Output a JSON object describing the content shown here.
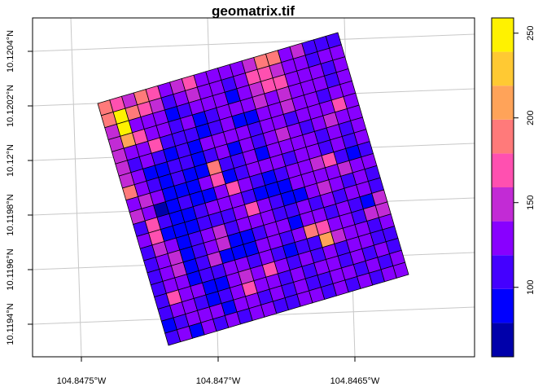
{
  "chart_data": {
    "type": "heatmap",
    "title": "geomatrix.tif",
    "xlabel": "",
    "ylabel": "",
    "x_ticks": [
      "104.8475°W",
      "104.847°W",
      "104.8465°W"
    ],
    "y_ticks": [
      "10.1204°N",
      "10.1202°N",
      "10.12°N",
      "10.1198°N",
      "10.1196°N",
      "10.1194°N"
    ],
    "grid": true,
    "legend": {
      "placement": "right",
      "breaks": [
        59,
        79,
        99,
        119,
        139,
        159,
        179,
        199,
        219,
        239,
        259
      ],
      "colors": [
        "#0000AA",
        "#0000FF",
        "#4400FF",
        "#8800FF",
        "#C22BD5",
        "#FF50B0",
        "#FF7A7A",
        "#FFA359",
        "#FFC933",
        "#FFF200"
      ],
      "tick_values": [
        100,
        150,
        200,
        250
      ],
      "tick_labels": [
        "100",
        "150",
        "200",
        "250"
      ]
    },
    "nrows": 20,
    "ncols": 20,
    "values": [
      [
        189,
        169,
        149,
        189,
        169,
        129,
        149,
        169,
        129,
        129,
        129,
        129,
        149,
        189,
        189,
        129,
        149,
        109,
        109,
        109
      ],
      [
        189,
        249,
        189,
        169,
        149,
        109,
        129,
        149,
        129,
        129,
        109,
        129,
        169,
        169,
        149,
        129,
        129,
        109,
        129,
        129
      ],
      [
        149,
        249,
        129,
        129,
        129,
        89,
        109,
        129,
        129,
        129,
        89,
        129,
        149,
        169,
        169,
        129,
        129,
        129,
        109,
        129
      ],
      [
        149,
        209,
        169,
        129,
        129,
        109,
        129,
        89,
        109,
        129,
        129,
        129,
        149,
        129,
        149,
        129,
        129,
        129,
        109,
        129
      ],
      [
        149,
        129,
        129,
        169,
        109,
        109,
        109,
        89,
        109,
        129,
        89,
        89,
        129,
        129,
        149,
        129,
        129,
        109,
        129,
        129
      ],
      [
        149,
        109,
        129,
        109,
        89,
        109,
        89,
        129,
        129,
        129,
        129,
        109,
        129,
        129,
        109,
        129,
        129,
        129,
        169,
        129
      ],
      [
        149,
        129,
        89,
        89,
        109,
        109,
        89,
        109,
        129,
        89,
        129,
        109,
        129,
        149,
        129,
        109,
        129,
        149,
        129,
        129
      ],
      [
        189,
        129,
        109,
        89,
        109,
        89,
        89,
        189,
        109,
        109,
        129,
        89,
        129,
        129,
        129,
        129,
        109,
        129,
        109,
        129
      ],
      [
        129,
        149,
        129,
        89,
        89,
        89,
        129,
        169,
        89,
        109,
        129,
        129,
        129,
        109,
        129,
        129,
        109,
        129,
        109,
        129
      ],
      [
        149,
        129,
        69,
        89,
        109,
        89,
        89,
        129,
        169,
        129,
        109,
        89,
        109,
        129,
        129,
        149,
        169,
        109,
        89,
        109
      ],
      [
        109,
        169,
        109,
        89,
        89,
        109,
        129,
        129,
        129,
        109,
        89,
        89,
        89,
        129,
        129,
        129,
        129,
        149,
        129,
        129
      ],
      [
        129,
        169,
        89,
        89,
        89,
        109,
        109,
        109,
        129,
        169,
        129,
        109,
        89,
        89,
        129,
        149,
        129,
        109,
        129,
        109
      ],
      [
        109,
        149,
        129,
        89,
        109,
        129,
        149,
        109,
        129,
        129,
        129,
        109,
        109,
        129,
        109,
        129,
        109,
        129,
        129,
        109
      ],
      [
        109,
        129,
        149,
        89,
        109,
        129,
        149,
        89,
        89,
        109,
        129,
        129,
        89,
        129,
        129,
        109,
        129,
        109,
        89,
        149
      ],
      [
        109,
        129,
        149,
        89,
        109,
        149,
        89,
        89,
        89,
        129,
        129,
        109,
        129,
        189,
        169,
        129,
        129,
        109,
        149,
        149
      ],
      [
        109,
        129,
        129,
        89,
        109,
        109,
        129,
        129,
        109,
        129,
        109,
        89,
        109,
        109,
        209,
        149,
        129,
        129,
        109,
        129
      ],
      [
        109,
        169,
        129,
        129,
        89,
        89,
        129,
        149,
        129,
        169,
        129,
        109,
        129,
        109,
        129,
        109,
        129,
        129,
        109,
        109
      ],
      [
        109,
        129,
        129,
        109,
        89,
        109,
        129,
        169,
        129,
        129,
        109,
        129,
        109,
        129,
        129,
        109,
        129,
        109,
        129,
        109
      ],
      [
        89,
        109,
        129,
        129,
        129,
        89,
        129,
        129,
        109,
        129,
        109,
        129,
        109,
        109,
        129,
        129,
        109,
        129,
        109,
        129
      ],
      [
        109,
        129,
        89,
        129,
        109,
        129,
        109,
        129,
        129,
        109,
        109,
        129,
        129,
        109,
        129,
        109,
        129,
        109,
        129,
        129
      ]
    ]
  }
}
